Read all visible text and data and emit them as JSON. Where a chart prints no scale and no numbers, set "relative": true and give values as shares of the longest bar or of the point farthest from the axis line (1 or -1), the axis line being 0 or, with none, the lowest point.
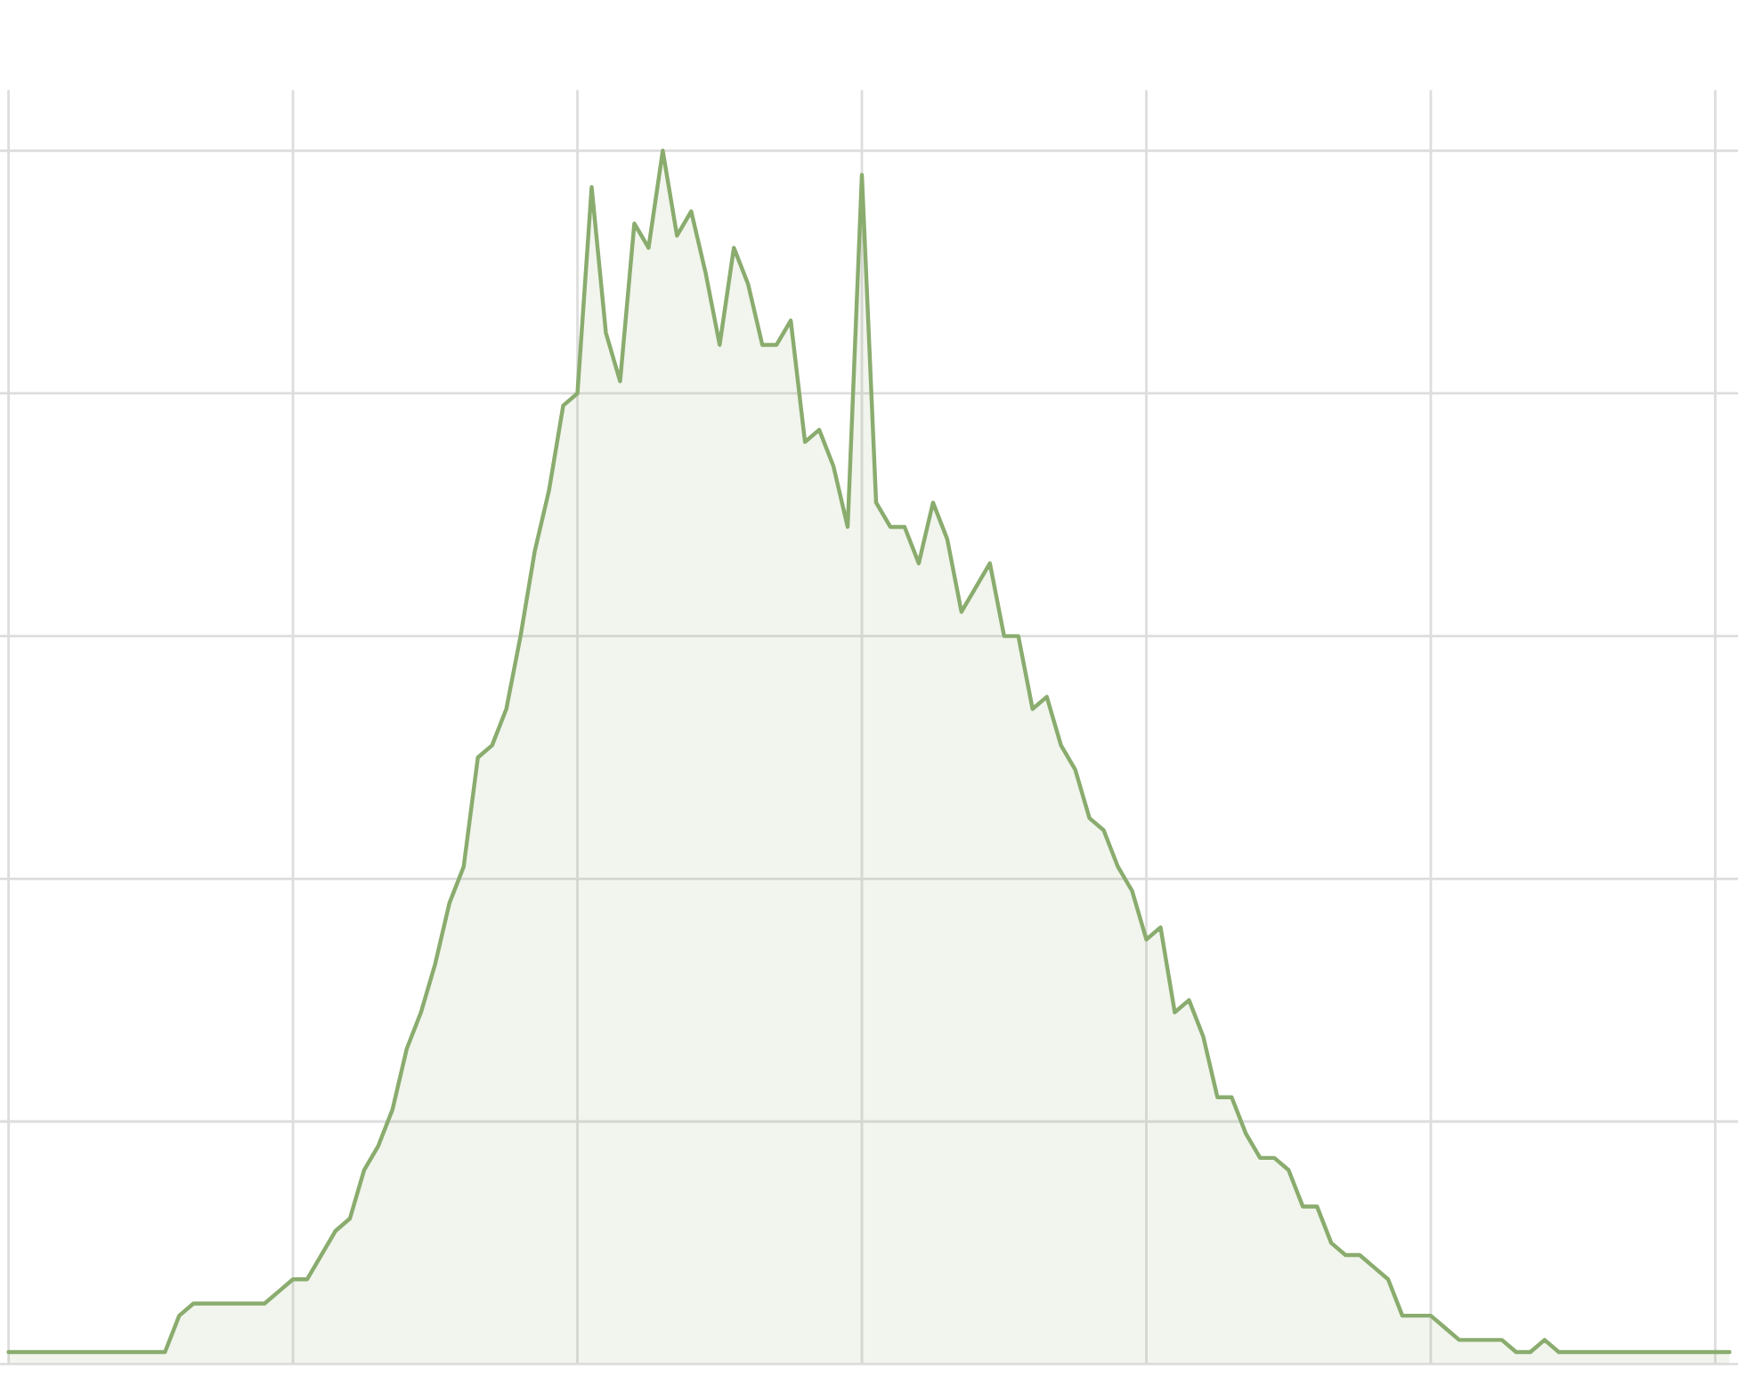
{
  "chart_data": {
    "type": "area",
    "relative": true,
    "grid": true,
    "tick_labels": false,
    "legend": false,
    "categories": [
      null,
      null,
      null,
      null,
      null,
      null,
      null,
      null,
      null,
      null,
      null,
      null,
      null,
      null,
      null,
      null,
      null,
      null,
      null,
      null,
      null,
      null,
      null,
      null,
      null,
      null,
      null,
      null,
      null,
      null,
      null,
      null,
      null,
      null,
      null,
      null,
      null,
      null,
      null,
      null,
      null,
      null,
      null,
      null,
      null,
      null,
      null,
      null,
      null,
      null,
      null,
      null,
      null,
      null,
      null,
      null,
      null,
      null,
      null,
      null,
      null,
      null,
      null,
      null,
      null,
      null,
      null,
      null,
      null,
      null,
      null,
      null,
      null,
      null,
      null,
      null,
      null,
      null,
      null,
      null,
      null,
      null,
      null,
      null,
      null,
      null,
      null,
      null,
      null,
      null,
      null,
      null,
      null,
      null,
      null,
      null,
      null,
      null,
      null,
      null,
      null,
      null,
      null,
      null,
      null,
      null,
      null,
      null,
      null,
      null,
      null,
      null,
      null,
      null,
      null,
      null,
      null,
      null,
      null,
      null,
      null,
      null
    ],
    "series": [
      {
        "color": "#8aac6e",
        "values": [
          0.01,
          0.01,
          0.01,
          0.01,
          0.01,
          0.01,
          0.01,
          0.01,
          0.01,
          0.01,
          0.01,
          0.01,
          0.04,
          0.05,
          0.05,
          0.05,
          0.05,
          0.05,
          0.05,
          0.06,
          0.07,
          0.07,
          0.09,
          0.11,
          0.12,
          0.16,
          0.18,
          0.21,
          0.26,
          0.29,
          0.33,
          0.38,
          0.41,
          0.5,
          0.51,
          0.54,
          0.6,
          0.67,
          0.72,
          0.79,
          0.8,
          0.97,
          0.85,
          0.81,
          0.94,
          0.92,
          1.0,
          0.93,
          0.95,
          0.9,
          0.84,
          0.92,
          0.89,
          0.84,
          0.84,
          0.86,
          0.76,
          0.77,
          0.74,
          0.69,
          0.98,
          0.71,
          0.69,
          0.69,
          0.66,
          0.71,
          0.68,
          0.62,
          0.64,
          0.66,
          0.6,
          0.6,
          0.54,
          0.55,
          0.51,
          0.49,
          0.45,
          0.44,
          0.41,
          0.39,
          0.35,
          0.36,
          0.29,
          0.3,
          0.27,
          0.22,
          0.22,
          0.19,
          0.17,
          0.17,
          0.16,
          0.13,
          0.13,
          0.1,
          0.09,
          0.09,
          0.08,
          0.07,
          0.04,
          0.04,
          0.04,
          0.03,
          0.02,
          0.02,
          0.02,
          0.02,
          0.01,
          0.01,
          0.02,
          0.01,
          0.01,
          0.01,
          0.01,
          0.01,
          0.01,
          0.01,
          0.01,
          0.01,
          0.01,
          0.01,
          0.01,
          0.01
        ]
      }
    ]
  }
}
